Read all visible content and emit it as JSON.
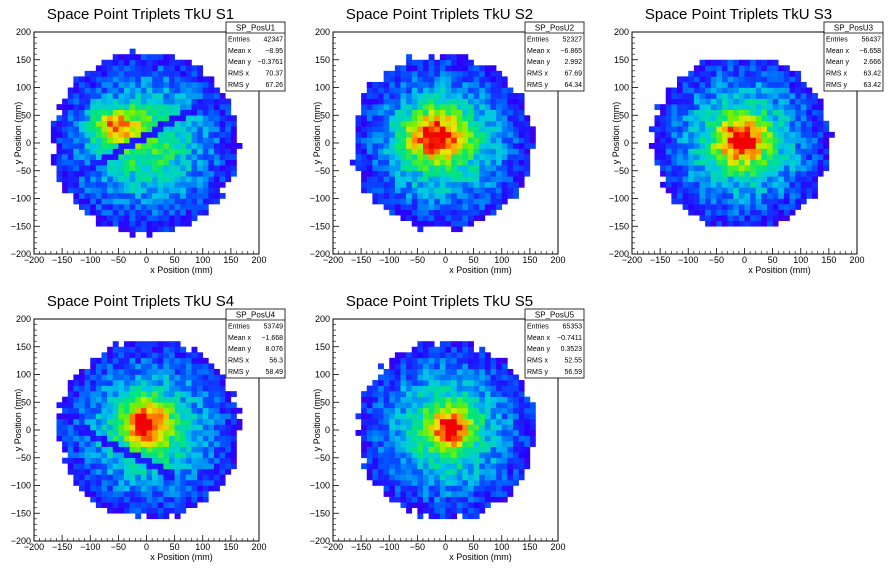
{
  "chart_data": [
    {
      "type": "heatmap",
      "title": "Space Point Triplets TkU S1",
      "xlabel": "x Position (mm)",
      "ylabel": "y Position (mm)",
      "xlim": [
        -200,
        200
      ],
      "ylim": [
        -200,
        200
      ],
      "xticks": [
        "−200",
        "−150",
        "−100",
        "−50",
        "0",
        "50",
        "100",
        "150",
        "200"
      ],
      "yticks": [
        "200",
        "150",
        "100",
        "50",
        "0",
        "−50",
        "−100",
        "−150",
        "−200"
      ],
      "bin_size": 10,
      "shape": {
        "cx": -2,
        "cy": 0,
        "r": 165,
        "clip_top": 165,
        "clip_bottom": -165
      },
      "hotspots": [
        {
          "x": -55,
          "y": 30,
          "sx": 30,
          "sy": 22
        }
      ],
      "band": {
        "x1": -130,
        "y1": -60,
        "x2": 100,
        "y2": 70,
        "slope_note": "dead-channel line"
      },
      "stats": {
        "name": "SP_PosU1",
        "rows": [
          [
            "Entries",
            "42347"
          ],
          [
            "Mean x",
            "−8.95"
          ],
          [
            "Mean y",
            "−0.3761"
          ],
          [
            "RMS x",
            "70.37"
          ],
          [
            "RMS y",
            "67.26"
          ]
        ]
      }
    },
    {
      "type": "heatmap",
      "title": "Space Point Triplets TkU S2",
      "xlabel": "x Position (mm)",
      "ylabel": "y Position (mm)",
      "xlim": [
        -200,
        200
      ],
      "ylim": [
        -200,
        200
      ],
      "xticks": [
        "−200",
        "−150",
        "−100",
        "−50",
        "0",
        "50",
        "100",
        "150",
        "200"
      ],
      "yticks": [
        "200",
        "150",
        "100",
        "50",
        "0",
        "−50",
        "−100",
        "−150",
        "−200"
      ],
      "bin_size": 10,
      "shape": {
        "cx": -5,
        "cy": 2,
        "r": 160,
        "clip_top": 155,
        "clip_bottom": -155
      },
      "hotspots": [
        {
          "x": -20,
          "y": 15,
          "sx": 38,
          "sy": 32
        }
      ],
      "stats": {
        "name": "SP_PosU2",
        "rows": [
          [
            "Entries",
            "52327"
          ],
          [
            "Mean x",
            "−6.865"
          ],
          [
            "Mean y",
            "2.992"
          ],
          [
            "RMS x",
            "67.69"
          ],
          [
            "RMS y",
            "64.34"
          ]
        ]
      }
    },
    {
      "type": "heatmap",
      "title": "Space Point Triplets TkU S3",
      "xlabel": "x Position (mm)",
      "ylabel": "y Position (mm)",
      "xlim": [
        -200,
        200
      ],
      "ylim": [
        -200,
        200
      ],
      "xticks": [
        "−200",
        "−150",
        "−100",
        "−50",
        "0",
        "50",
        "100",
        "150",
        "200"
      ],
      "yticks": [
        "200",
        "150",
        "100",
        "50",
        "0",
        "−50",
        "−100",
        "−150",
        "−200"
      ],
      "bin_size": 10,
      "shape": {
        "cx": -5,
        "cy": 2,
        "r": 158,
        "clip_top": 150,
        "clip_bottom": -150
      },
      "hotspots": [
        {
          "x": -5,
          "y": 5,
          "sx": 32,
          "sy": 30
        }
      ],
      "stats": {
        "name": "SP_PosU3",
        "rows": [
          [
            "Entries",
            "56437"
          ],
          [
            "Mean x",
            "−6.658"
          ],
          [
            "Mean y",
            "2.666"
          ],
          [
            "RMS x",
            "63.42"
          ],
          [
            "RMS y",
            "63.42"
          ]
        ]
      }
    },
    {
      "type": "heatmap",
      "title": "Space Point Triplets TkU S4",
      "xlabel": "x Position (mm)",
      "ylabel": "y Position (mm)",
      "xlim": [
        -200,
        200
      ],
      "ylim": [
        -200,
        200
      ],
      "xticks": [
        "−200",
        "−150",
        "−100",
        "−50",
        "0",
        "50",
        "100",
        "150",
        "200"
      ],
      "yticks": [
        "200",
        "150",
        "100",
        "50",
        "0",
        "−50",
        "−100",
        "−150",
        "−200"
      ],
      "bin_size": 10,
      "shape": {
        "cx": 5,
        "cy": 0,
        "r": 162,
        "clip_top": 160,
        "clip_bottom": -155
      },
      "hotspots": [
        {
          "x": 0,
          "y": 15,
          "sx": 28,
          "sy": 28
        }
      ],
      "band": {
        "x1": -110,
        "y1": 0,
        "x2": 40,
        "y2": -80,
        "slope_note": "dead-channel line"
      },
      "stats": {
        "name": "SP_PosU4",
        "rows": [
          [
            "Entries",
            "53749"
          ],
          [
            "Mean x",
            "−1.668"
          ],
          [
            "Mean y",
            "8.076"
          ],
          [
            "RMS x",
            "56.3"
          ],
          [
            "RMS y",
            "58.49"
          ]
        ]
      }
    },
    {
      "type": "heatmap",
      "title": "Space Point Triplets TkU S5",
      "xlabel": "x Position (mm)",
      "ylabel": "y Position (mm)",
      "xlim": [
        -200,
        200
      ],
      "ylim": [
        -200,
        200
      ],
      "xticks": [
        "−200",
        "−150",
        "−100",
        "−50",
        "0",
        "50",
        "100",
        "150",
        "200"
      ],
      "yticks": [
        "200",
        "150",
        "100",
        "50",
        "0",
        "−50",
        "−100",
        "−150",
        "−200"
      ],
      "bin_size": 10,
      "shape": {
        "cx": 2,
        "cy": 0,
        "r": 160,
        "clip_top": 160,
        "clip_bottom": -160
      },
      "hotspots": [
        {
          "x": 8,
          "y": 5,
          "sx": 26,
          "sy": 26
        }
      ],
      "stats": {
        "name": "SP_PosU5",
        "rows": [
          [
            "Entries",
            "65353"
          ],
          [
            "Mean x",
            "−0.7411"
          ],
          [
            "Mean y",
            "0.3523"
          ],
          [
            "RMS x",
            "52.55"
          ],
          [
            "RMS y",
            "56.59"
          ]
        ]
      }
    }
  ]
}
